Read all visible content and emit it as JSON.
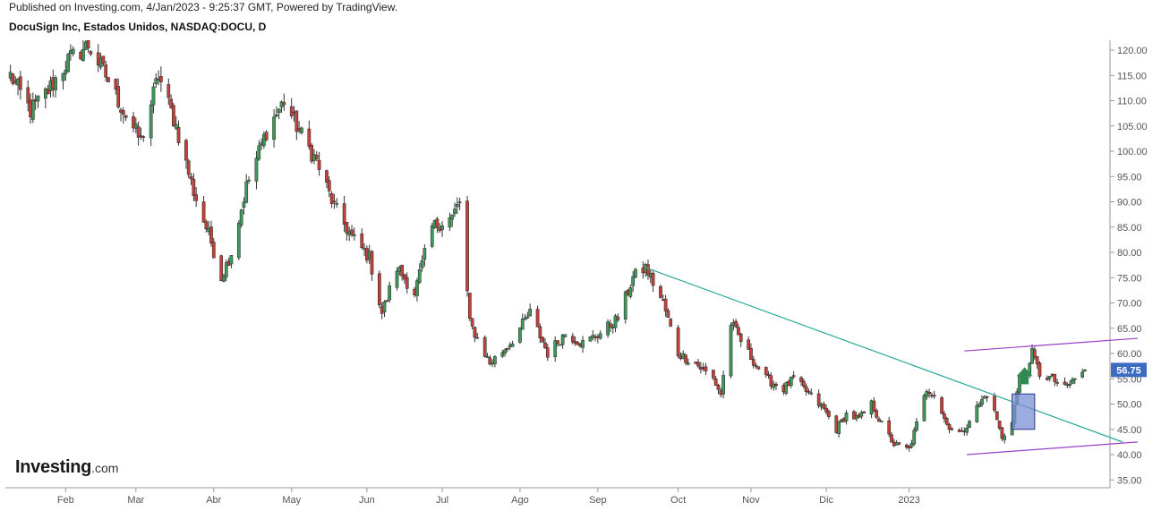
{
  "header": {
    "published": "Published on Investing.com, 4/Jan/2023 - 9:25:37 GMT, Powered by TradingView.",
    "title": "DocuSign Inc, Estados Unidos, NASDAQ:DOCU, D"
  },
  "brand": {
    "name": "Investing",
    "suffix": ".com"
  },
  "colors": {
    "up": "#3f9a5a",
    "down": "#c2413a",
    "wick": "#333333",
    "trendline": "#2aa89b",
    "channel": "#9b3fc9",
    "price_label_bg": "#3c6cc0",
    "box_fill": "#7b8fd6",
    "arrow": "#2e8a52"
  },
  "chart_data": {
    "type": "candlestick",
    "title": "DocuSign Inc, Estados Unidos, NASDAQ:DOCU, D",
    "ylim": [
      33,
      122
    ],
    "y_ticks": [
      "120.00",
      "115.00",
      "110.00",
      "105.00",
      "100.00",
      "95.00",
      "90.00",
      "85.00",
      "80.00",
      "75.00",
      "70.00",
      "65.00",
      "60.00",
      "55.00",
      "50.00",
      "45.00",
      "40.00",
      "35.00"
    ],
    "x_ticks": [
      {
        "label": "Feb",
        "date": "2022-02-01"
      },
      {
        "label": "Mar",
        "date": "2022-03-01"
      },
      {
        "label": "Abr",
        "date": "2022-04-01"
      },
      {
        "label": "May",
        "date": "2022-05-02"
      },
      {
        "label": "Jun",
        "date": "2022-06-01"
      },
      {
        "label": "Jul",
        "date": "2022-07-01"
      },
      {
        "label": "Ago",
        "date": "2022-08-01"
      },
      {
        "label": "Sep",
        "date": "2022-09-01"
      },
      {
        "label": "Oct",
        "date": "2022-10-03"
      },
      {
        "label": "Nov",
        "date": "2022-11-01"
      },
      {
        "label": "Dic",
        "date": "2022-12-01"
      },
      {
        "label": "2023",
        "date": "2023-01-03"
      }
    ],
    "last_price": "56.75",
    "anchors": [
      [
        "2022-01-10",
        115
      ],
      [
        "2022-01-18",
        108
      ],
      [
        "2022-01-25",
        112
      ],
      [
        "2022-02-02",
        118
      ],
      [
        "2022-02-10",
        121
      ],
      [
        "2022-02-17",
        115
      ],
      [
        "2022-02-24",
        108
      ],
      [
        "2022-03-03",
        102
      ],
      [
        "2022-03-10",
        115
      ],
      [
        "2022-03-17",
        105
      ],
      [
        "2022-03-24",
        92
      ],
      [
        "2022-03-31",
        82
      ],
      [
        "2022-04-04",
        75
      ],
      [
        "2022-04-08",
        80
      ],
      [
        "2022-04-14",
        93
      ],
      [
        "2022-04-22",
        104
      ],
      [
        "2022-04-29",
        110
      ],
      [
        "2022-05-05",
        104
      ],
      [
        "2022-05-12",
        98
      ],
      [
        "2022-05-19",
        89
      ],
      [
        "2022-05-26",
        83
      ],
      [
        "2022-06-02",
        79
      ],
      [
        "2022-06-07",
        68
      ],
      [
        "2022-06-13",
        77
      ],
      [
        "2022-06-20",
        72
      ],
      [
        "2022-06-27",
        85
      ],
      [
        "2022-07-05",
        87
      ],
      [
        "2022-07-08",
        90
      ],
      [
        "2022-07-12",
        66
      ],
      [
        "2022-07-20",
        58
      ],
      [
        "2022-07-28",
        62
      ],
      [
        "2022-08-05",
        68
      ],
      [
        "2022-08-12",
        60
      ],
      [
        "2022-08-19",
        64
      ],
      [
        "2022-08-26",
        62
      ],
      [
        "2022-09-02",
        64
      ],
      [
        "2022-09-09",
        67
      ],
      [
        "2022-09-15",
        75
      ],
      [
        "2022-09-20",
        77
      ],
      [
        "2022-09-27",
        70
      ],
      [
        "2022-10-03",
        60
      ],
      [
        "2022-10-10",
        58
      ],
      [
        "2022-10-17",
        55
      ],
      [
        "2022-10-20",
        52
      ],
      [
        "2022-10-24",
        66
      ],
      [
        "2022-10-31",
        60
      ],
      [
        "2022-11-07",
        55
      ],
      [
        "2022-11-14",
        53
      ],
      [
        "2022-11-18",
        55
      ],
      [
        "2022-11-24",
        52
      ],
      [
        "2022-11-30",
        49
      ],
      [
        "2022-12-05",
        45
      ],
      [
        "2022-12-09",
        48
      ],
      [
        "2022-12-14",
        47
      ],
      [
        "2022-12-19",
        50
      ],
      [
        "2022-12-23",
        46
      ],
      [
        "2022-12-28",
        42
      ],
      [
        "2023-01-03",
        41
      ],
      [
        "2023-01-06",
        46
      ],
      [
        "2023-01-10",
        53
      ],
      [
        "2023-01-13",
        52
      ],
      [
        "2023-01-18",
        46
      ],
      [
        "2023-01-24",
        44
      ],
      [
        "2023-01-27",
        47
      ],
      [
        "2023-01-31",
        50
      ],
      [
        "2023-02-03",
        52
      ],
      [
        "2023-02-07",
        47
      ],
      [
        "2023-02-09",
        43
      ],
      [
        "2023-02-13",
        47
      ],
      [
        "2023-02-16",
        55
      ],
      [
        "2023-02-21",
        60
      ],
      [
        "2023-02-24",
        56
      ],
      [
        "2023-03-01",
        55
      ],
      [
        "2023-03-06",
        53
      ],
      [
        "2023-03-10",
        55
      ],
      [
        "2023-03-14",
        56.75
      ]
    ],
    "trendline": [
      [
        "2022-09-20",
        77
      ],
      [
        "2023-03-29",
        42.5
      ]
    ],
    "channel_upper": [
      [
        "2023-01-25",
        60.5
      ],
      [
        "2023-04-04",
        63
      ]
    ],
    "channel_lower": [
      [
        "2023-01-26",
        40
      ],
      [
        "2023-04-04",
        42.5
      ]
    ],
    "box": {
      "date_from": "2023-02-13",
      "date_to": "2023-02-22",
      "high": 52,
      "low": 45
    },
    "arrow": {
      "date": "2023-02-18",
      "price": 55.5,
      "direction": "up"
    }
  }
}
